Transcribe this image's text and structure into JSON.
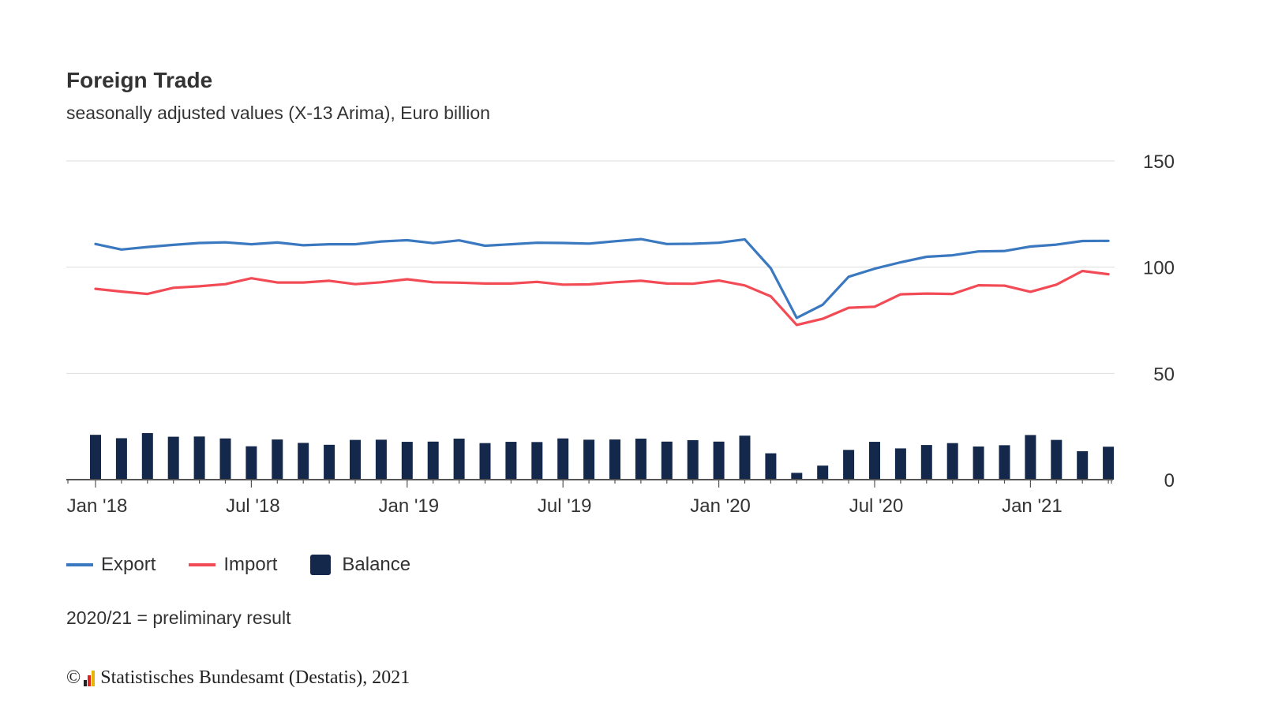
{
  "colors": {
    "export": "#3a78bf",
    "import": "#f24b55",
    "balance": "#14284b",
    "grid": "#dddddd",
    "axis": "#555555"
  },
  "chart_data": {
    "type": "line",
    "title": "Foreign Trade",
    "subtitle": "seasonally adjusted values (X-13 Arima), Euro billion",
    "y_ticks": [
      "0",
      "50",
      "100",
      "150"
    ],
    "ylim": [
      0,
      150
    ],
    "x_tick_labels": [
      {
        "index": 0,
        "label": "Jan '18"
      },
      {
        "index": 6,
        "label": "Jul '18"
      },
      {
        "index": 12,
        "label": "Jan '19"
      },
      {
        "index": 18,
        "label": "Jul '19"
      },
      {
        "index": 24,
        "label": "Jan '20"
      },
      {
        "index": 30,
        "label": "Jul '20"
      },
      {
        "index": 36,
        "label": "Jan '21"
      }
    ],
    "months": [
      "Jan 2018",
      "Feb 2018",
      "Mar 2018",
      "Apr 2018",
      "May 2018",
      "Jun 2018",
      "Jul 2018",
      "Aug 2018",
      "Sep 2018",
      "Oct 2018",
      "Nov 2018",
      "Dec 2018",
      "Jan 2019",
      "Feb 2019",
      "Mar 2019",
      "Apr 2019",
      "May 2019",
      "Jun 2019",
      "Jul 2019",
      "Aug 2019",
      "Sep 2019",
      "Oct 2019",
      "Nov 2019",
      "Dec 2019",
      "Jan 2020",
      "Feb 2020",
      "Mar 2020",
      "Apr 2020",
      "May 2020",
      "Jun 2020",
      "Jul 2020",
      "Aug 2020",
      "Sep 2020",
      "Oct 2020",
      "Nov 2020",
      "Dec 2020",
      "Jan 2021",
      "Feb 2021",
      "Mar 2021",
      "Apr 2021"
    ],
    "series": [
      {
        "name": "Export",
        "kind": "line",
        "values": [
          110.9,
          108.3,
          109.5,
          110.5,
          111.4,
          111.7,
          110.8,
          111.6,
          110.3,
          110.8,
          110.8,
          112.1,
          112.7,
          111.3,
          112.6,
          110.1,
          110.8,
          111.5,
          111.4,
          111.1,
          112.2,
          113.2,
          110.9,
          111.0,
          111.5,
          113.1,
          99.5,
          76.1,
          82.3,
          95.5,
          99.3,
          102.3,
          104.9,
          105.6,
          107.4,
          107.6,
          109.7,
          110.6,
          112.3,
          112.4
        ]
      },
      {
        "name": "Import",
        "kind": "line",
        "values": [
          89.8,
          88.5,
          87.4,
          90.3,
          91.0,
          92.0,
          94.8,
          92.8,
          92.8,
          93.6,
          92.0,
          92.9,
          94.3,
          92.9,
          92.7,
          92.3,
          92.3,
          93.1,
          91.8,
          91.9,
          92.9,
          93.6,
          92.3,
          92.2,
          93.7,
          91.4,
          86.3,
          72.8,
          75.7,
          80.9,
          81.4,
          87.2,
          87.6,
          87.4,
          91.5,
          91.3,
          88.4,
          91.8,
          98.2,
          96.7
        ]
      },
      {
        "name": "Balance",
        "kind": "bar",
        "values": [
          21.1,
          19.5,
          21.9,
          20.2,
          20.3,
          19.4,
          15.7,
          18.9,
          17.3,
          16.4,
          18.7,
          18.8,
          17.8,
          17.9,
          19.3,
          17.2,
          17.8,
          17.7,
          19.4,
          18.8,
          18.9,
          19.3,
          17.9,
          18.6,
          17.9,
          20.7,
          12.4,
          3.2,
          6.6,
          14.0,
          17.8,
          14.7,
          16.3,
          17.2,
          15.6,
          16.2,
          21.0,
          18.7,
          13.4,
          15.5
        ]
      }
    ],
    "legend_position": "bottom-left",
    "grid": true
  },
  "legend": {
    "export": "Export",
    "import": "Import",
    "balance": "Balance"
  },
  "note": "2020/21 = preliminary result",
  "copyright": {
    "symbol": "©",
    "text": "Statistisches Bundesamt (Destatis), 2021",
    "logo_icon": "destatis-logo-icon"
  }
}
